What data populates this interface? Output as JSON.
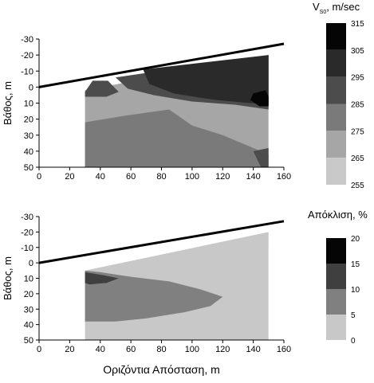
{
  "chart_data": [
    {
      "type": "heatmap",
      "panel": "top",
      "ylabel": "Βάθος, m",
      "xlim": [
        0,
        160
      ],
      "ylim": [
        -30,
        50
      ],
      "y_inverted": true,
      "x_ticks": [
        "0",
        "20",
        "40",
        "60",
        "80",
        "100",
        "120",
        "140",
        "160"
      ],
      "y_ticks": [
        "-30",
        "-20",
        "-10",
        "0",
        "10",
        "20",
        "30",
        "40",
        "50"
      ],
      "surface_line": {
        "x": [
          0,
          160
        ],
        "y": [
          0,
          -27
        ]
      },
      "grid_extent": {
        "x": [
          30,
          150
        ],
        "y_bottom": 50
      },
      "colorbar": {
        "title_main": "V",
        "title_sub": "S0",
        "title_rest": ", m/sec",
        "ticks": [
          "315",
          "305",
          "295",
          "285",
          "275",
          "265",
          "255"
        ],
        "colors": [
          "#050505",
          "#2a2a2a",
          "#4c4c4c",
          "#7a7a7a",
          "#a6a6a6",
          "#c9c9c9"
        ]
      },
      "regions": [
        {
          "fill": "#a6a6a6",
          "points": [
            [
              30,
              2
            ],
            [
              150,
              -20
            ],
            [
              150,
              50
            ],
            [
              30,
              50
            ]
          ]
        },
        {
          "fill": "#7a7a7a",
          "points": [
            [
              30,
              22
            ],
            [
              55,
              18
            ],
            [
              85,
              14
            ],
            [
              100,
              24
            ],
            [
              120,
              30
            ],
            [
              140,
              38
            ],
            [
              150,
              42
            ],
            [
              150,
              50
            ],
            [
              30,
              50
            ]
          ]
        },
        {
          "fill": "#4c4c4c",
          "points": [
            [
              140,
              40
            ],
            [
              150,
              38
            ],
            [
              150,
              50
            ],
            [
              145,
              50
            ]
          ]
        },
        {
          "fill": "#4c4c4c",
          "points": [
            [
              50,
              -6
            ],
            [
              150,
              -20
            ],
            [
              150,
              14
            ],
            [
              128,
              11
            ],
            [
              100,
              9
            ],
            [
              75,
              5
            ],
            [
              58,
              1
            ]
          ]
        },
        {
          "fill": "#4c4c4c",
          "points": [
            [
              30,
              3
            ],
            [
              35,
              -4
            ],
            [
              45,
              -4
            ],
            [
              52,
              3
            ],
            [
              44,
              6
            ],
            [
              30,
              6
            ]
          ]
        },
        {
          "fill": "#2a2a2a",
          "points": [
            [
              68,
              -11
            ],
            [
              150,
              -20
            ],
            [
              150,
              11
            ],
            [
              115,
              8
            ],
            [
              88,
              4
            ],
            [
              72,
              -2
            ]
          ]
        },
        {
          "fill": "#050505",
          "points": [
            [
              140,
              4
            ],
            [
              148,
              2
            ],
            [
              150,
              6
            ],
            [
              150,
              12
            ],
            [
              144,
              12
            ],
            [
              138,
              8
            ]
          ]
        }
      ]
    },
    {
      "type": "heatmap",
      "panel": "bottom",
      "xlabel": "Οριζόντια Απόσταση, m",
      "ylabel": "Βάθος, m",
      "xlim": [
        0,
        160
      ],
      "ylim": [
        -30,
        50
      ],
      "y_inverted": true,
      "x_ticks": [
        "0",
        "20",
        "40",
        "60",
        "80",
        "100",
        "120",
        "140",
        "160"
      ],
      "y_ticks": [
        "-30",
        "-20",
        "-10",
        "0",
        "10",
        "20",
        "30",
        "40",
        "50"
      ],
      "surface_line": {
        "x": [
          0,
          160
        ],
        "y": [
          0,
          -27
        ]
      },
      "grid_extent": {
        "x": [
          30,
          150
        ],
        "y_bottom": 50
      },
      "colorbar": {
        "title_main": "Απόκλιση, %",
        "ticks": [
          "20",
          "15",
          "10",
          "5",
          "0"
        ],
        "colors": [
          "#050505",
          "#3f3f3f",
          "#808080",
          "#c8c8c8"
        ]
      },
      "regions": [
        {
          "fill": "#c8c8c8",
          "points": [
            [
              30,
              5
            ],
            [
              150,
              -20
            ],
            [
              150,
              50
            ],
            [
              30,
              50
            ]
          ]
        },
        {
          "fill": "#808080",
          "points": [
            [
              30,
              5
            ],
            [
              40,
              6
            ],
            [
              60,
              9
            ],
            [
              85,
              12
            ],
            [
              105,
              17
            ],
            [
              120,
              22
            ],
            [
              112,
              28
            ],
            [
              95,
              32
            ],
            [
              70,
              36
            ],
            [
              50,
              38
            ],
            [
              30,
              38
            ]
          ]
        },
        {
          "fill": "#3f3f3f",
          "points": [
            [
              30,
              6
            ],
            [
              42,
              8
            ],
            [
              52,
              10
            ],
            [
              44,
              13
            ],
            [
              33,
              14
            ],
            [
              30,
              13
            ]
          ]
        }
      ]
    }
  ]
}
